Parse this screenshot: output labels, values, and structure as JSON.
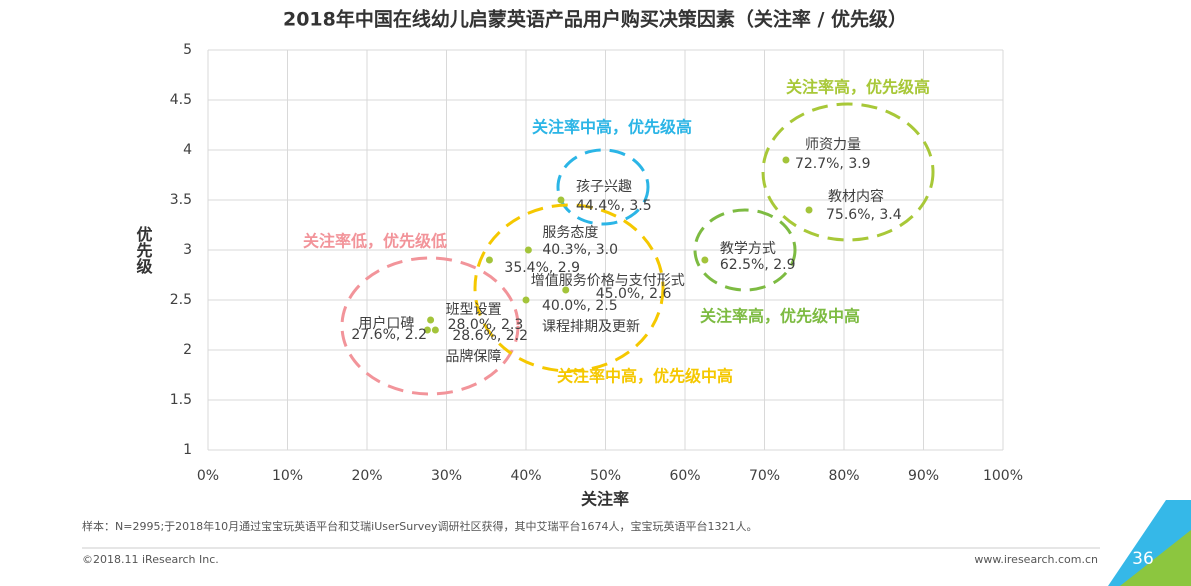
{
  "chart_data": {
    "type": "scatter",
    "title": "2018年中国在线幼儿启蒙英语产品用户购买决策因素（关注率 / 优先级）",
    "x_label": "关注率",
    "y_label": "优先级",
    "color": "#a3c43a",
    "names": [
      "师资力量",
      "教材内容",
      "孩子兴趣",
      "教学方式",
      "服务态度",
      null,
      "增值服务价格与支付形式",
      "课程排期及更新",
      "班型设置",
      "用户口碑",
      "品牌保障"
    ],
    "x": [
      72.7,
      75.6,
      44.4,
      62.5,
      40.3,
      35.4,
      45.0,
      40.0,
      28.0,
      27.6,
      28.6
    ],
    "values": [
      3.9,
      3.4,
      3.5,
      2.9,
      3.0,
      2.9,
      2.6,
      2.5,
      2.3,
      2.2,
      2.2
    ],
    "value_labels": [
      "72.7%, 3.9",
      "75.6%, 3.4",
      "44.4%, 3.5",
      "62.5%, 2.9",
      "40.3%, 3.0",
      "35.4%, 2.9",
      "45.0%, 2.6",
      "40.0%, 2.5",
      "28.0%, 2.3",
      "27.6%, 2.2",
      "28.6%, 2.2"
    ],
    "xlim": [
      0,
      100
    ],
    "xticks": [
      {
        "value": 0,
        "label": "0%"
      },
      {
        "value": 10,
        "label": "10%"
      },
      {
        "value": 20,
        "label": "20%"
      },
      {
        "value": 30,
        "label": "30%"
      },
      {
        "value": 40,
        "label": "40%"
      },
      {
        "value": 50,
        "label": "50%"
      },
      {
        "value": 60,
        "label": "60%"
      },
      {
        "value": 70,
        "label": "70%"
      },
      {
        "value": 80,
        "label": "80%"
      },
      {
        "value": 90,
        "label": "90%"
      },
      {
        "value": 100,
        "label": "100%"
      }
    ],
    "ylim": [
      1,
      5
    ],
    "yticks": [
      1,
      1.5,
      2,
      2.5,
      3,
      3.5,
      4,
      4.5,
      5
    ],
    "grid": true,
    "zones": [
      {
        "label": "关注率高，优先级高",
        "color": "#a8c838"
      },
      {
        "label": "关注率中高，优先级高",
        "color": "#2bb5e6"
      },
      {
        "label": "关注率低，优先级低",
        "color": "#f2949a"
      },
      {
        "label": "关注率中高，优先级中高",
        "color": "#f5c800"
      },
      {
        "label": "关注率高，优先级中高",
        "color": "#7dbb42"
      }
    ]
  },
  "page": {
    "note": "样本：N=2995;于2018年10月通过宝宝玩英语平台和艾瑞iUserSurvey调研社区获得，其中艾瑞平台1674人，宝宝玩英语平台1321人。",
    "copyright": "©2018.11 iResearch Inc.",
    "website": "www.iresearch.com.cn",
    "page_number": "36"
  }
}
